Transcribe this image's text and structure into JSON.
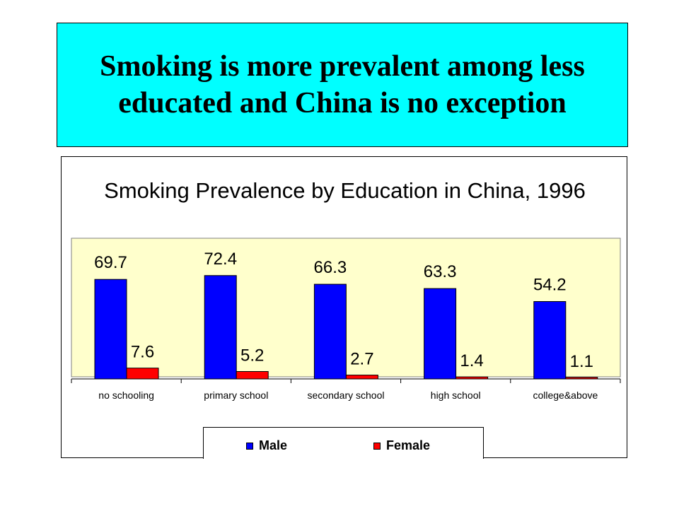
{
  "slide": {
    "title": "Smoking is more prevalent among less educated and China is no exception"
  },
  "chart_data": {
    "type": "bar",
    "title": "Smoking Prevalence by Education in China, 1996",
    "categories": [
      "no schooling",
      "primary school",
      "secondary school",
      "high school",
      "college&above"
    ],
    "series": [
      {
        "name": "Male",
        "values": [
          69.7,
          72.4,
          66.3,
          63.3,
          54.2
        ],
        "labels": [
          "69.7",
          "72.4",
          "66.3",
          "63.3",
          "54.2"
        ],
        "color": "#0000ff"
      },
      {
        "name": "Female",
        "values": [
          7.6,
          5.2,
          2.7,
          1.4,
          1.1
        ],
        "labels": [
          "7.6",
          "5.2",
          "2.7",
          "1.4",
          "1.1"
        ],
        "color": "#ff0000"
      }
    ],
    "ylim": [
      0,
      100
    ],
    "grid": false,
    "legend_position": "bottom",
    "plot_background": "#ffffcc"
  }
}
